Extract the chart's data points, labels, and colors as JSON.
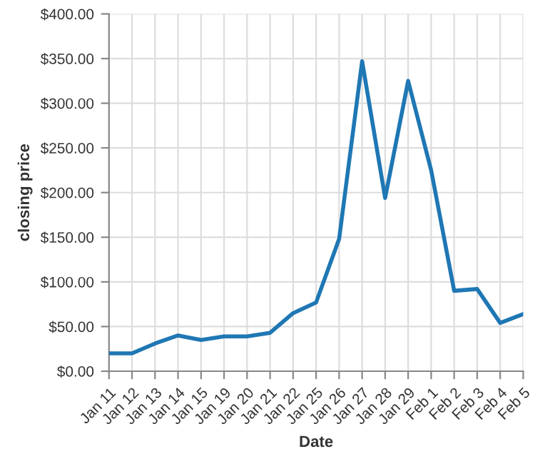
{
  "chart_data": {
    "type": "line",
    "xlabel": "Date",
    "ylabel": "closing price",
    "categories": [
      "Jan 11",
      "Jan 12",
      "Jan 13",
      "Jan 14",
      "Jan 15",
      "Jan 19",
      "Jan 20",
      "Jan 21",
      "Jan 22",
      "Jan 25",
      "Jan 26",
      "Jan 27",
      "Jan 28",
      "Jan 29",
      "Feb 1",
      "Feb 2",
      "Feb 3",
      "Feb 4",
      "Feb 5"
    ],
    "series": [
      {
        "color": "#1f77b4",
        "values": [
          20,
          20,
          31,
          40,
          35,
          39,
          39,
          43,
          65,
          77,
          148,
          347,
          194,
          325,
          225,
          90,
          92,
          54,
          64
        ]
      }
    ],
    "ylim": [
      0,
      400
    ],
    "yticks": [
      {
        "value": 0,
        "label": "$0.00"
      },
      {
        "value": 50,
        "label": "$50.00"
      },
      {
        "value": 100,
        "label": "$100.00"
      },
      {
        "value": 150,
        "label": "$150.00"
      },
      {
        "value": 200,
        "label": "$200.00"
      },
      {
        "value": 250,
        "label": "$250.00"
      },
      {
        "value": 300,
        "label": "$300.00"
      },
      {
        "value": 350,
        "label": "$350.00"
      },
      {
        "value": 400,
        "label": "$400.00"
      }
    ],
    "grid": true
  }
}
